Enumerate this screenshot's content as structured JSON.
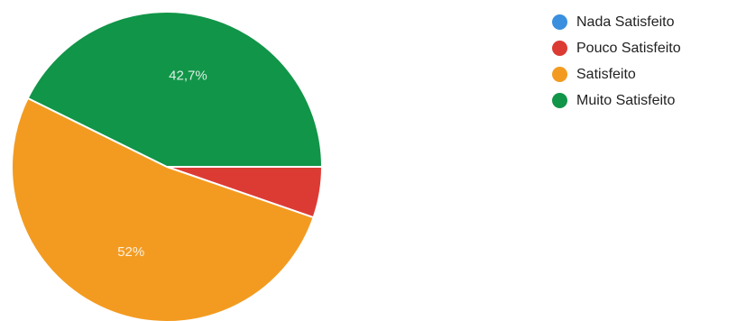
{
  "chart_data": {
    "type": "pie",
    "title": "",
    "legend_position": "right",
    "slices": [
      {
        "name": "Nada Satisfeito",
        "value": 0.0,
        "color": "#3a8fde",
        "label": ""
      },
      {
        "name": "Pouco Satisfeito",
        "value": 5.3,
        "color": "#dc3b34",
        "label": ""
      },
      {
        "name": "Satisfeito",
        "value": 52.0,
        "color": "#f39b20",
        "label": "52%"
      },
      {
        "name": "Muito Satisfeito",
        "value": 42.7,
        "color": "#119548",
        "label": "42,7%"
      }
    ]
  }
}
